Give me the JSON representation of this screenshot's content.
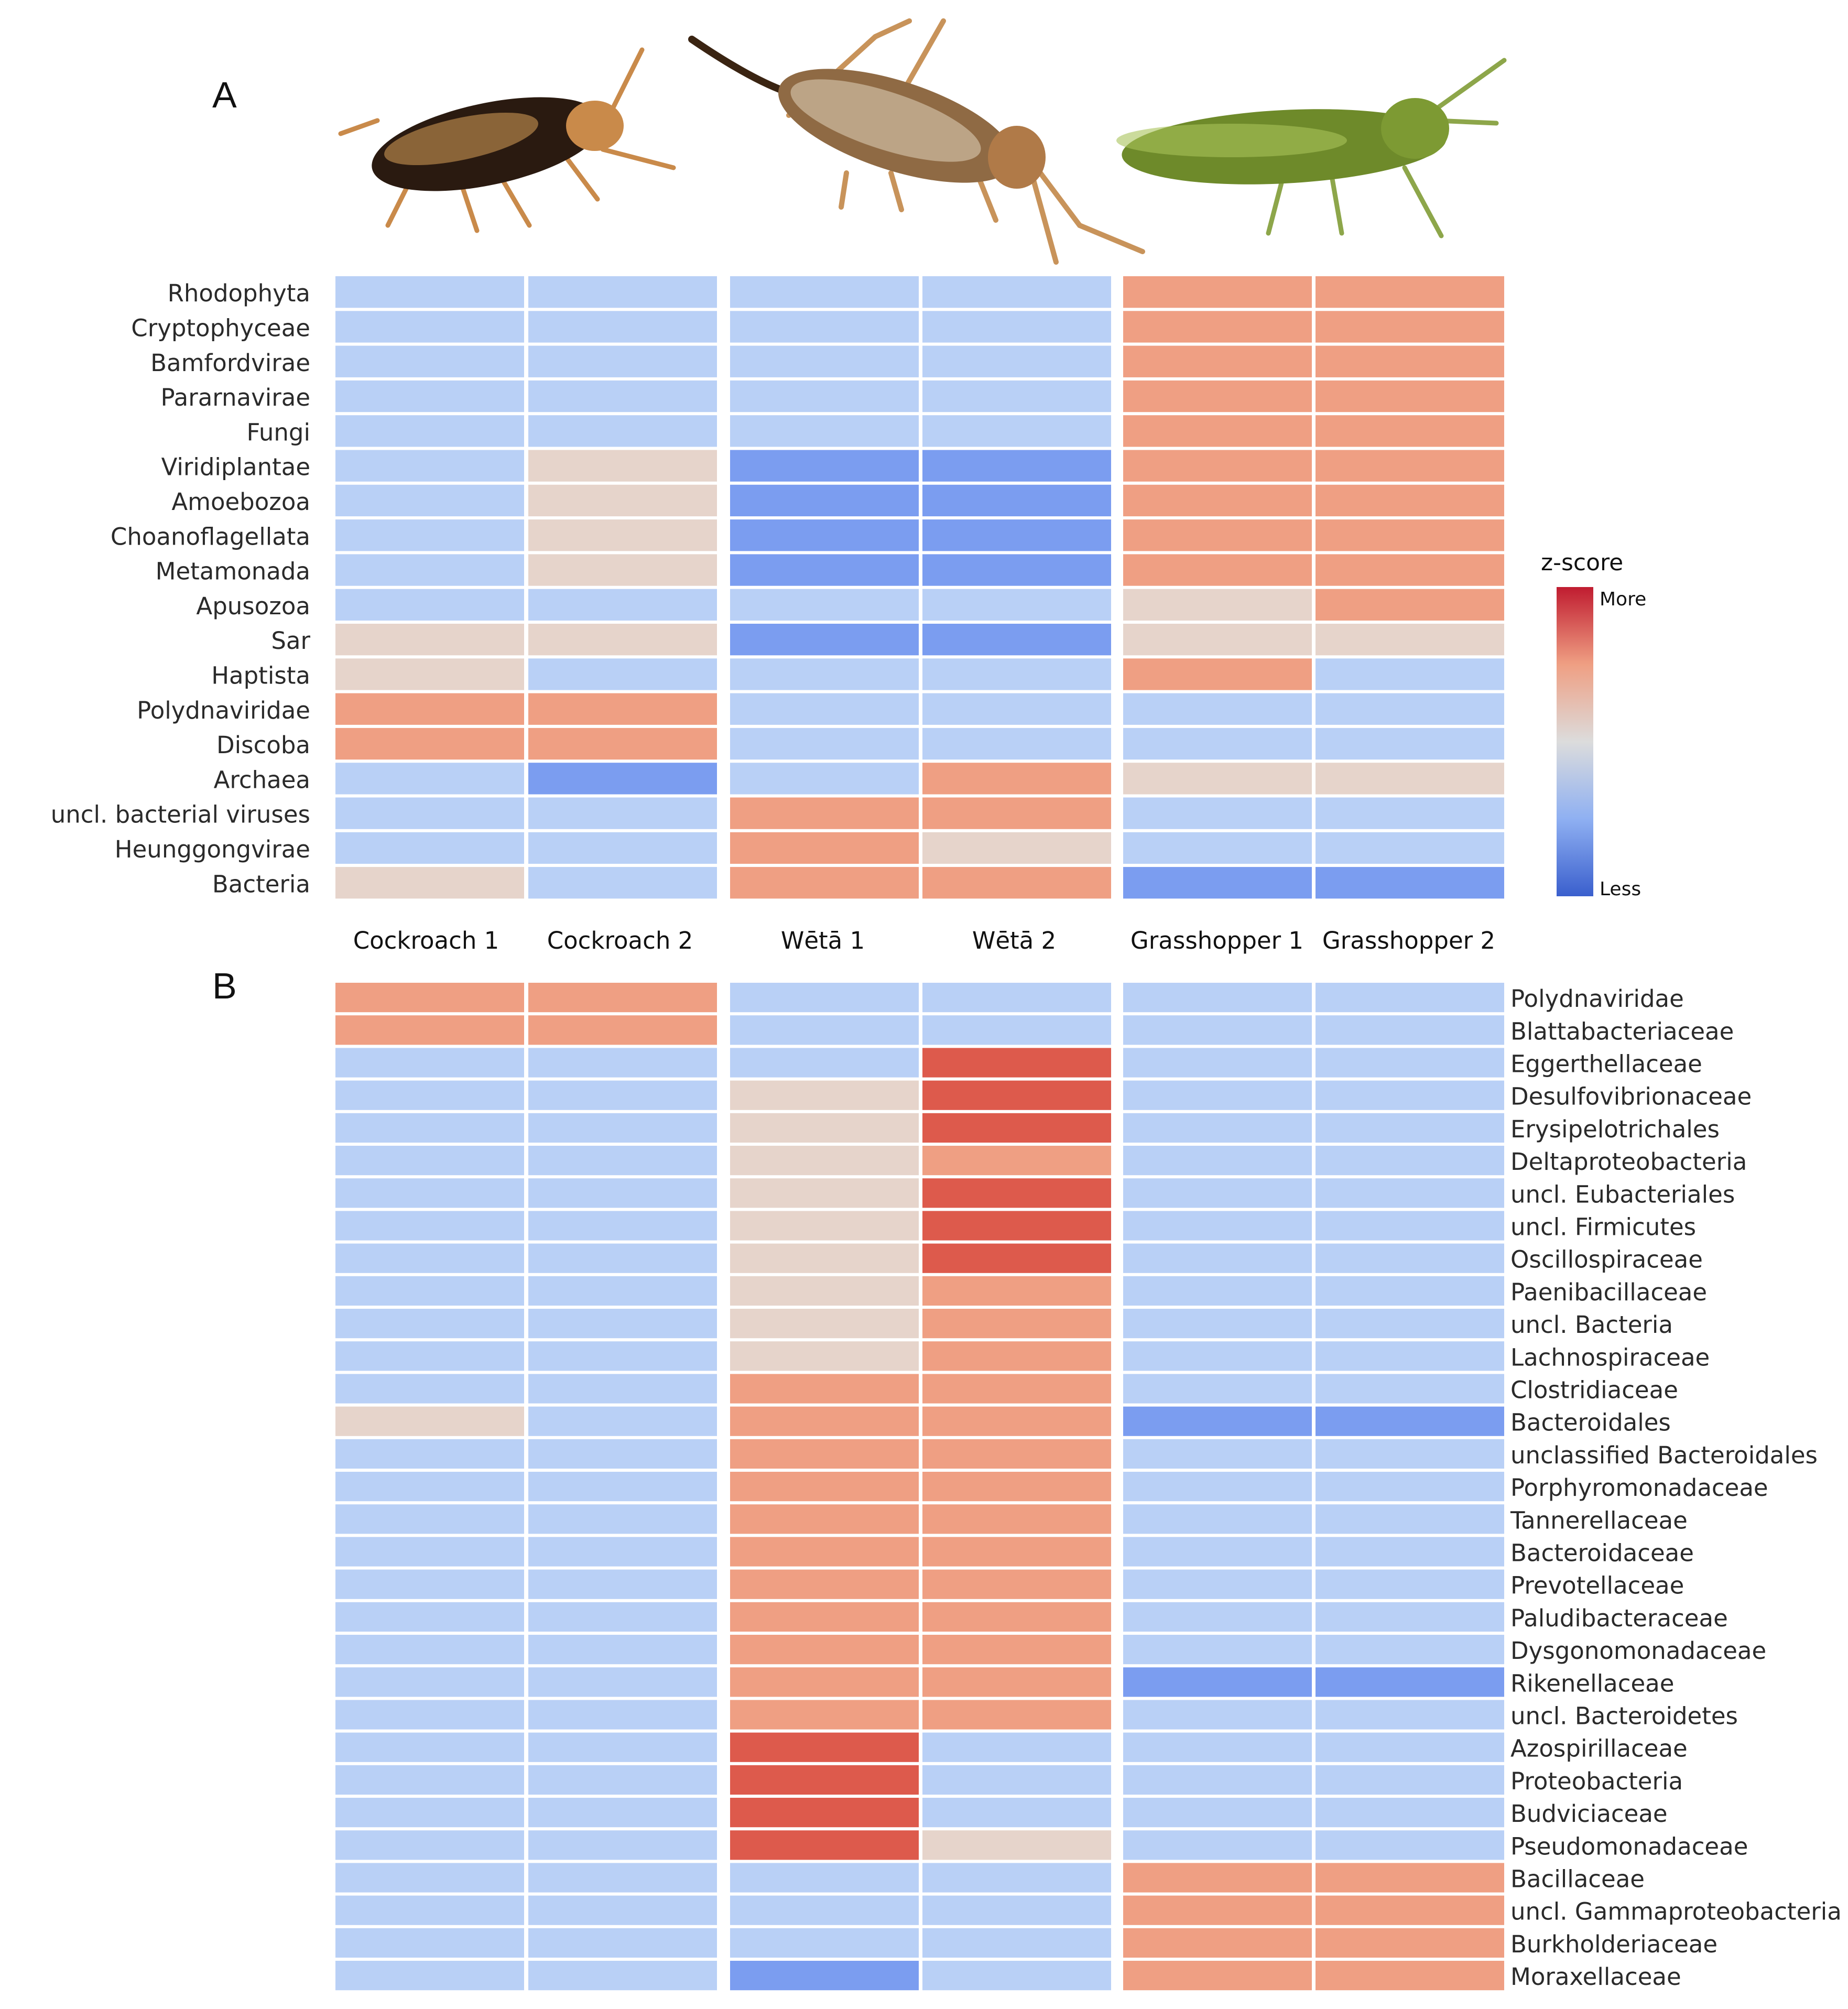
{
  "panels": {
    "a_letter": "A",
    "b_letter": "B"
  },
  "legend": {
    "title": "z-score",
    "high_label": "More",
    "low_label": "Less"
  },
  "insect_icons": [
    "cockroach-illustration",
    "weta-illustration",
    "grasshopper-illustration"
  ],
  "colors": {
    "level_3": "#dd5a4c",
    "level_2": "#ef9f83",
    "level_1": "#e6d4cb",
    "level_0": "#b9d0f6",
    "level_-1": "#7b9df0",
    "gradient_top": "#c01c30",
    "gradient_mid": "#dcdcdc",
    "gradient_bottom": "#3a5fcd"
  },
  "chart_data": [
    {
      "type": "heatmap",
      "panel": "A",
      "columns": [
        "Cockroach 1",
        "Cockroach 2",
        "Wētā 1",
        "Wētā 2",
        "Grasshopper 1",
        "Grasshopper 2"
      ],
      "value_scale": "relative z-score level (-1 = Less ... 3 = More)",
      "rows": [
        {
          "label": "Rhodophyta",
          "values": [
            0,
            0,
            0,
            0,
            2,
            2
          ]
        },
        {
          "label": "Cryptophyceae",
          "values": [
            0,
            0,
            0,
            0,
            2,
            2
          ]
        },
        {
          "label": "Bamfordvirae",
          "values": [
            0,
            0,
            0,
            0,
            2,
            2
          ]
        },
        {
          "label": "Pararnavirae",
          "values": [
            0,
            0,
            0,
            0,
            2,
            2
          ]
        },
        {
          "label": "Fungi",
          "values": [
            0,
            0,
            0,
            0,
            2,
            2
          ]
        },
        {
          "label": "Viridiplantae",
          "values": [
            0,
            1,
            -1,
            -1,
            2,
            2
          ]
        },
        {
          "label": "Amoebozoa",
          "values": [
            0,
            1,
            -1,
            -1,
            2,
            2
          ]
        },
        {
          "label": "Choanoflagellata",
          "values": [
            0,
            1,
            -1,
            -1,
            2,
            2
          ]
        },
        {
          "label": "Metamonada",
          "values": [
            0,
            1,
            -1,
            -1,
            2,
            2
          ]
        },
        {
          "label": "Apusozoa",
          "values": [
            0,
            0,
            0,
            0,
            1,
            2
          ]
        },
        {
          "label": "Sar",
          "values": [
            1,
            1,
            -1,
            -1,
            1,
            1
          ]
        },
        {
          "label": "Haptista",
          "values": [
            1,
            0,
            0,
            0,
            2,
            0
          ]
        },
        {
          "label": "Polydnaviridae",
          "values": [
            2,
            2,
            0,
            0,
            0,
            0
          ]
        },
        {
          "label": "Discoba",
          "values": [
            2,
            2,
            0,
            0,
            0,
            0
          ]
        },
        {
          "label": "Archaea",
          "values": [
            0,
            -1,
            0,
            2,
            1,
            1
          ]
        },
        {
          "label": "uncl. bacterial viruses",
          "values": [
            0,
            0,
            2,
            2,
            0,
            0
          ]
        },
        {
          "label": "Heunggongvirae",
          "values": [
            0,
            0,
            2,
            1,
            0,
            0
          ]
        },
        {
          "label": "Bacteria",
          "values": [
            1,
            0,
            2,
            2,
            -1,
            -1
          ]
        }
      ]
    },
    {
      "type": "heatmap",
      "panel": "B",
      "columns": [
        "Cockroach 1",
        "Cockroach 2",
        "Wētā 1",
        "Wētā 2",
        "Grasshopper 1",
        "Grasshopper 2"
      ],
      "value_scale": "relative z-score level (-1 = Less ... 3 = More)",
      "rows": [
        {
          "label": "Polydnaviridae",
          "values": [
            2,
            2,
            0,
            0,
            0,
            0
          ]
        },
        {
          "label": "Blattabacteriaceae",
          "values": [
            2,
            2,
            0,
            0,
            0,
            0
          ]
        },
        {
          "label": "Eggerthellaceae",
          "values": [
            0,
            0,
            0,
            3,
            0,
            0
          ]
        },
        {
          "label": "Desulfovibrionaceae",
          "values": [
            0,
            0,
            1,
            3,
            0,
            0
          ]
        },
        {
          "label": "Erysipelotrichales",
          "values": [
            0,
            0,
            1,
            3,
            0,
            0
          ]
        },
        {
          "label": "Deltaproteobacteria",
          "values": [
            0,
            0,
            1,
            2,
            0,
            0
          ]
        },
        {
          "label": "uncl. Eubacteriales",
          "values": [
            0,
            0,
            1,
            3,
            0,
            0
          ]
        },
        {
          "label": "uncl. Firmicutes",
          "values": [
            0,
            0,
            1,
            3,
            0,
            0
          ]
        },
        {
          "label": "Oscillospiraceae",
          "values": [
            0,
            0,
            1,
            3,
            0,
            0
          ]
        },
        {
          "label": "Paenibacillaceae",
          "values": [
            0,
            0,
            1,
            2,
            0,
            0
          ]
        },
        {
          "label": "uncl. Bacteria",
          "values": [
            0,
            0,
            1,
            2,
            0,
            0
          ]
        },
        {
          "label": "Lachnospiraceae",
          "values": [
            0,
            0,
            1,
            2,
            0,
            0
          ]
        },
        {
          "label": "Clostridiaceae",
          "values": [
            0,
            0,
            2,
            2,
            0,
            0
          ]
        },
        {
          "label": "Bacteroidales",
          "values": [
            1,
            0,
            2,
            2,
            -1,
            -1
          ]
        },
        {
          "label": "unclassified Bacteroidales",
          "values": [
            0,
            0,
            2,
            2,
            0,
            0
          ]
        },
        {
          "label": "Porphyromonadaceae",
          "values": [
            0,
            0,
            2,
            2,
            0,
            0
          ]
        },
        {
          "label": "Tannerellaceae",
          "values": [
            0,
            0,
            2,
            2,
            0,
            0
          ]
        },
        {
          "label": "Bacteroidaceae",
          "values": [
            0,
            0,
            2,
            2,
            0,
            0
          ]
        },
        {
          "label": "Prevotellaceae",
          "values": [
            0,
            0,
            2,
            2,
            0,
            0
          ]
        },
        {
          "label": "Paludibacteraceae",
          "values": [
            0,
            0,
            2,
            2,
            0,
            0
          ]
        },
        {
          "label": "Dysgonomonadaceae",
          "values": [
            0,
            0,
            2,
            2,
            0,
            0
          ]
        },
        {
          "label": "Rikenellaceae",
          "values": [
            0,
            0,
            2,
            2,
            -1,
            -1
          ]
        },
        {
          "label": "uncl. Bacteroidetes",
          "values": [
            0,
            0,
            2,
            2,
            0,
            0
          ]
        },
        {
          "label": "Azospirillaceae",
          "values": [
            0,
            0,
            3,
            0,
            0,
            0
          ]
        },
        {
          "label": "Proteobacteria",
          "values": [
            0,
            0,
            3,
            0,
            0,
            0
          ]
        },
        {
          "label": "Budviciaceae",
          "values": [
            0,
            0,
            3,
            0,
            0,
            0
          ]
        },
        {
          "label": "Pseudomonadaceae",
          "values": [
            0,
            0,
            3,
            1,
            0,
            0
          ]
        },
        {
          "label": "Bacillaceae",
          "values": [
            0,
            0,
            0,
            0,
            2,
            2
          ]
        },
        {
          "label": "uncl. Gammaproteobacteria",
          "values": [
            0,
            0,
            0,
            0,
            2,
            2
          ]
        },
        {
          "label": "Burkholderiaceae",
          "values": [
            0,
            0,
            0,
            0,
            2,
            2
          ]
        },
        {
          "label": "Moraxellaceae",
          "values": [
            0,
            0,
            -1,
            0,
            2,
            2
          ]
        }
      ]
    }
  ]
}
